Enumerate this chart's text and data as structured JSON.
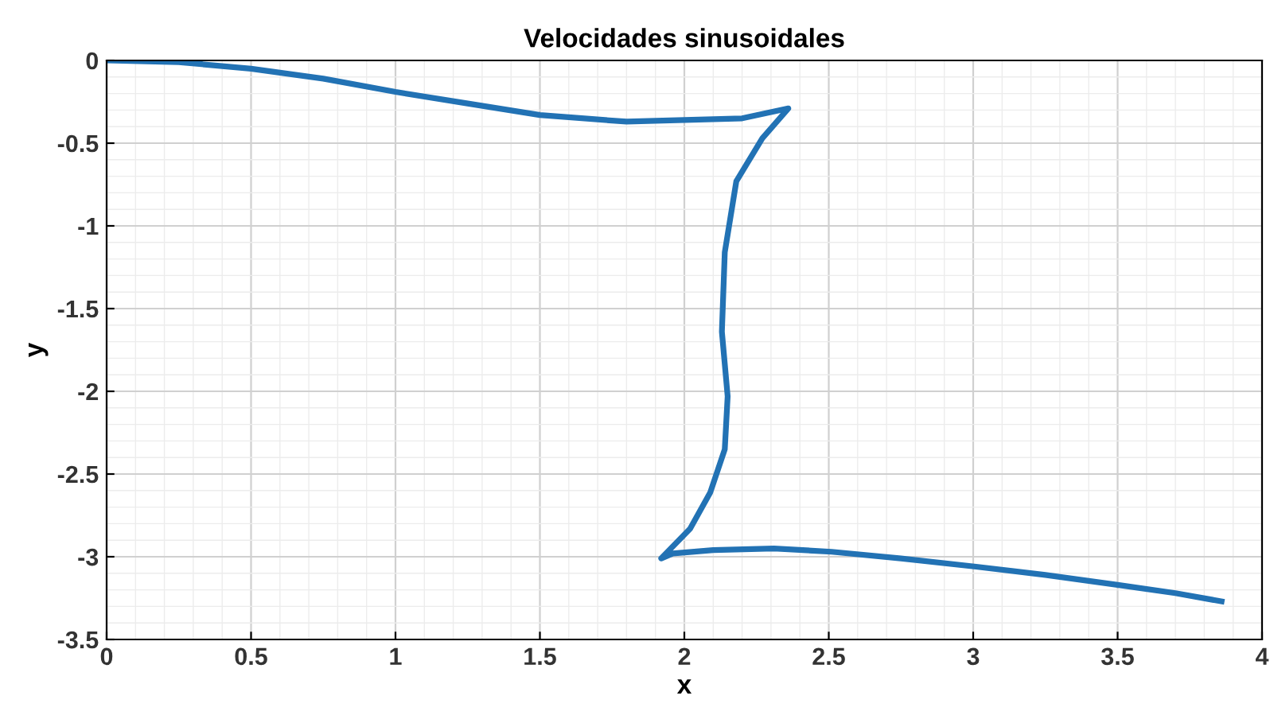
{
  "chart_data": {
    "type": "line",
    "title": "Velocidades sinusoidales",
    "xlabel": "x",
    "ylabel": "y",
    "series": [
      {
        "color": "#2272b4",
        "x": [
          0,
          0.25,
          0.5,
          0.75,
          1.0,
          1.25,
          1.5,
          1.8,
          2.0,
          2.2,
          2.36,
          2.27,
          2.18,
          2.14,
          2.13,
          2.15,
          2.14,
          2.09,
          2.02,
          1.92,
          1.96,
          2.1,
          2.31,
          2.51,
          2.75,
          3.01,
          3.25,
          3.5,
          3.7,
          3.86
        ],
        "values": [
          0,
          -0.01,
          -0.05,
          -0.11,
          -0.19,
          -0.26,
          -0.33,
          -0.37,
          -0.36,
          -0.35,
          -0.29,
          -0.47,
          -0.73,
          -1.16,
          -1.64,
          -2.03,
          -2.35,
          -2.61,
          -2.83,
          -3.01,
          -2.98,
          -2.96,
          -2.95,
          -2.97,
          -3.01,
          -3.06,
          -3.11,
          -3.17,
          -3.22,
          -3.27
        ]
      }
    ],
    "xlim": [
      0,
      4
    ],
    "ylim": [
      -3.5,
      0
    ],
    "xticks": [
      0,
      0.5,
      1,
      1.5,
      2,
      2.5,
      3,
      3.5,
      4
    ],
    "yticks": [
      -3.5,
      -3,
      -2.5,
      -2,
      -1.5,
      -1,
      -0.5,
      0
    ],
    "grid": true,
    "marker": "none",
    "line_style": "solid"
  }
}
